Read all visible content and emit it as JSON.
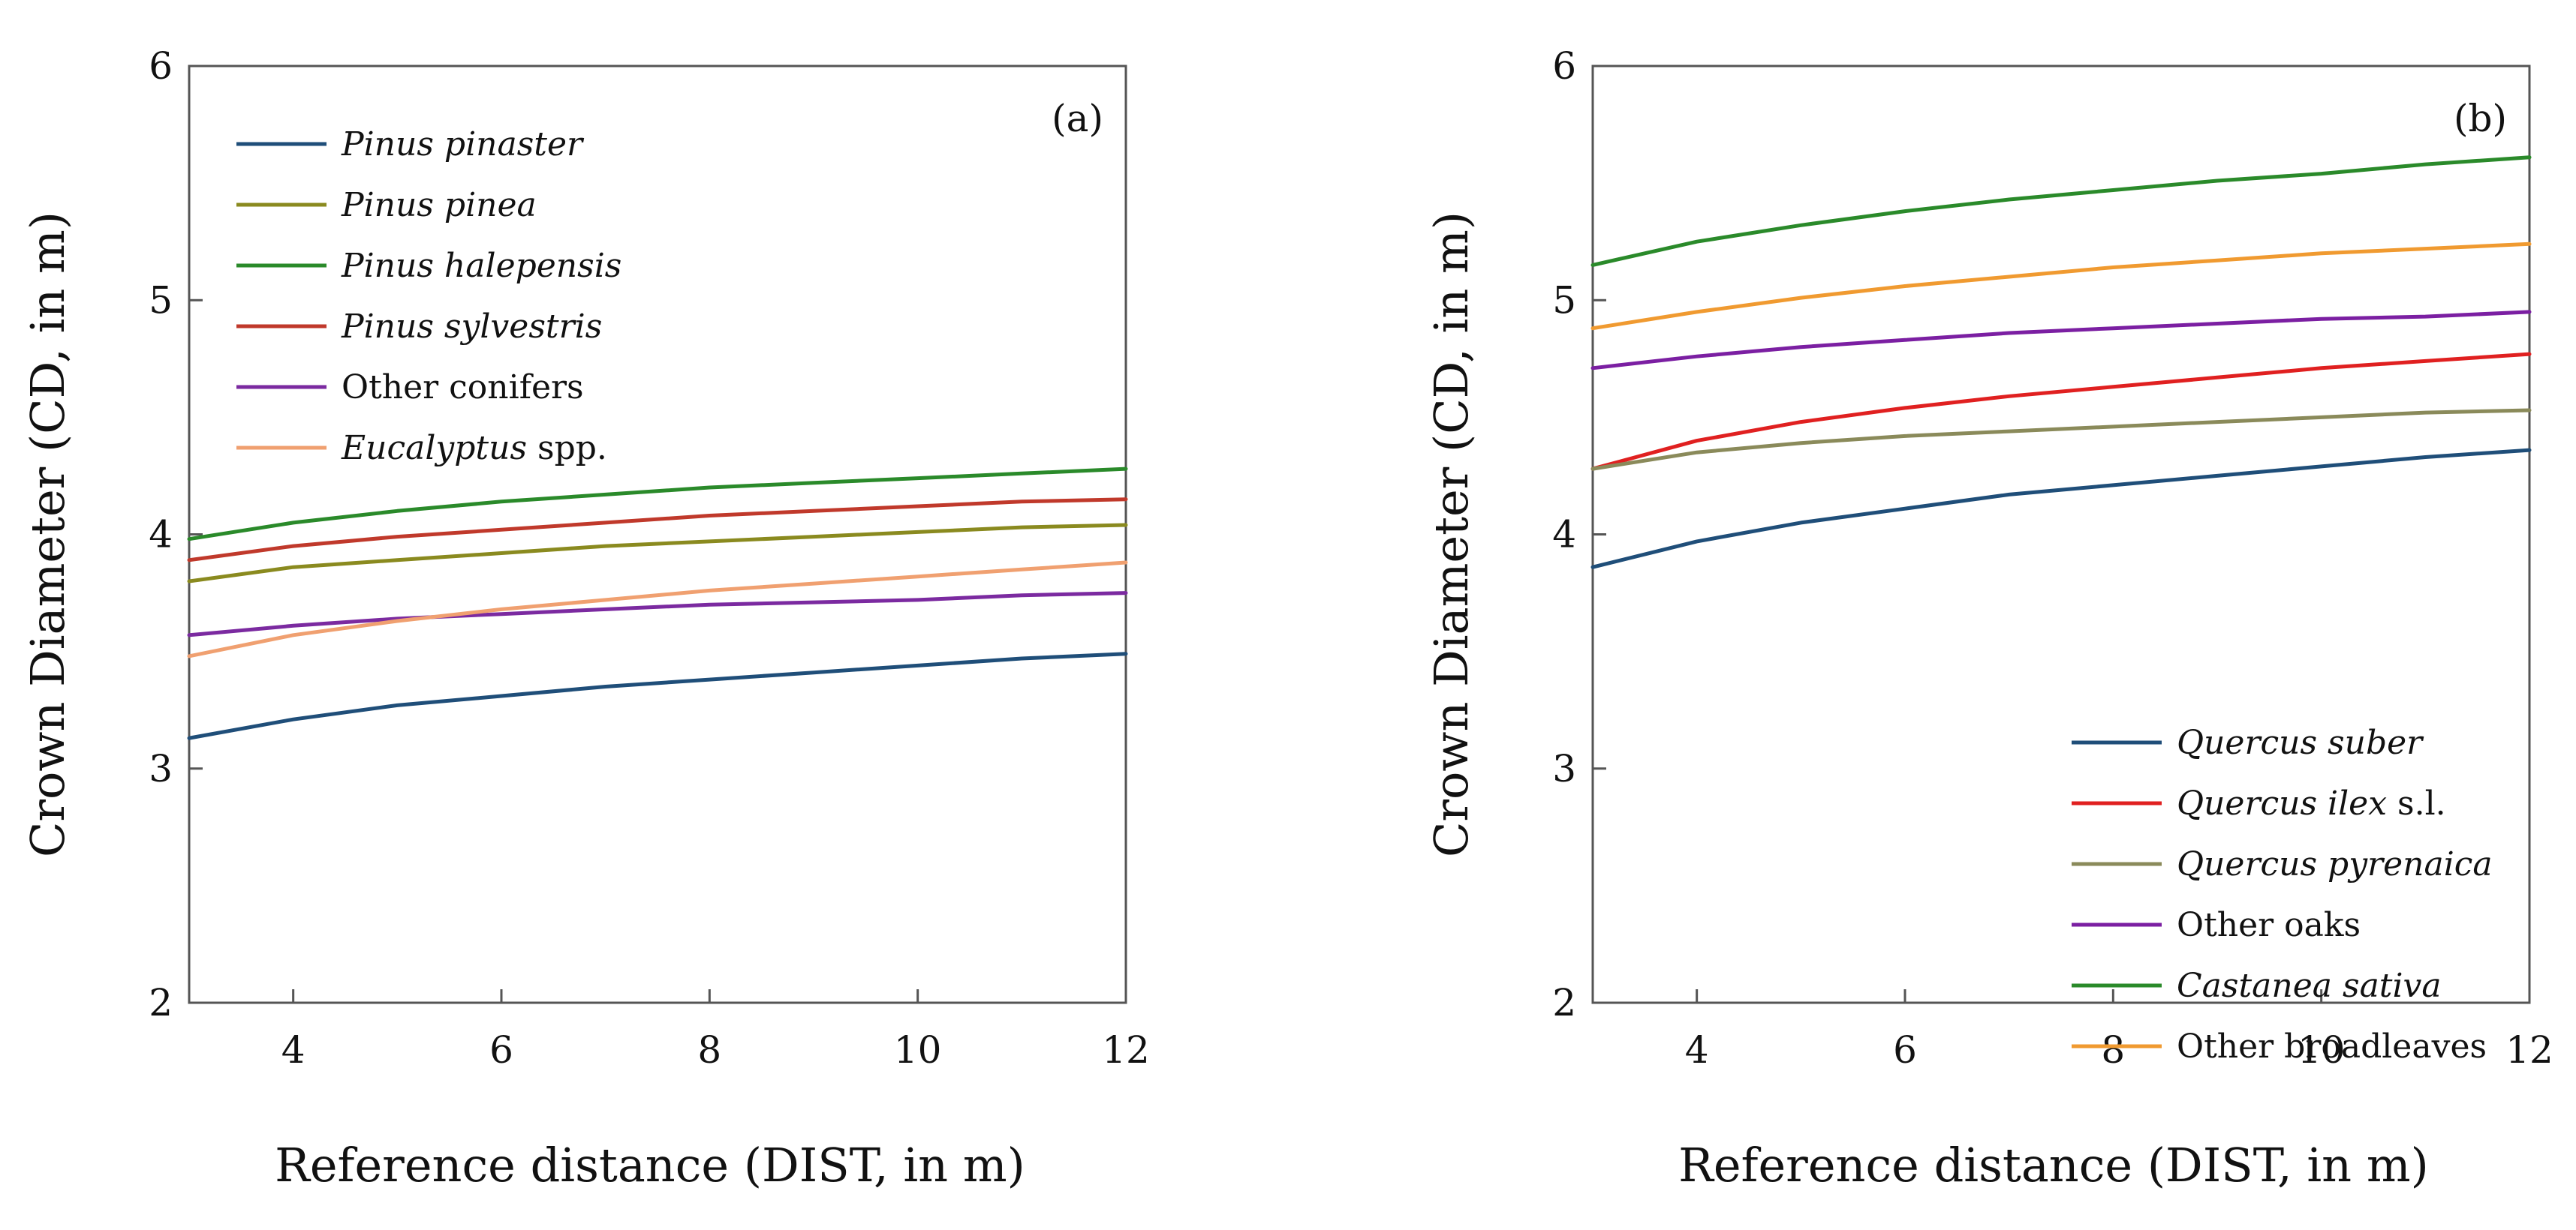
{
  "chart_data": [
    {
      "type": "line",
      "panel_label": "(a)",
      "xlabel": "Reference distance (DIST, in m)",
      "ylabel": "Crown Diameter (CD, in m)",
      "xlim": [
        3,
        12
      ],
      "ylim": [
        2,
        6
      ],
      "x_ticks": [
        4,
        6,
        8,
        10,
        12
      ],
      "y_ticks": [
        2,
        3,
        4,
        5,
        6
      ],
      "grid": false,
      "legend_position": "top-left",
      "x": [
        3,
        4,
        5,
        6,
        7,
        8,
        9,
        10,
        11,
        12
      ],
      "series": [
        {
          "name_italic": "Pinus pinaster",
          "name_rest": "",
          "color": "#1f4e79",
          "values": [
            3.13,
            3.21,
            3.27,
            3.31,
            3.35,
            3.38,
            3.41,
            3.44,
            3.47,
            3.49
          ]
        },
        {
          "name_italic": "Pinus pinea",
          "name_rest": "",
          "color": "#8a8a1f",
          "values": [
            3.8,
            3.86,
            3.89,
            3.92,
            3.95,
            3.97,
            3.99,
            4.01,
            4.03,
            4.04
          ]
        },
        {
          "name_italic": "Pinus halepensis",
          "name_rest": "",
          "color": "#2a8a2a",
          "values": [
            3.98,
            4.05,
            4.1,
            4.14,
            4.17,
            4.2,
            4.22,
            4.24,
            4.26,
            4.28
          ]
        },
        {
          "name_italic": "Pinus sylvestris",
          "name_rest": "",
          "color": "#c0392b",
          "values": [
            3.89,
            3.95,
            3.99,
            4.02,
            4.05,
            4.08,
            4.1,
            4.12,
            4.14,
            4.15
          ]
        },
        {
          "name_italic": "",
          "name_rest": "Other conifers",
          "color": "#7b2aa0",
          "values": [
            3.57,
            3.61,
            3.64,
            3.66,
            3.68,
            3.7,
            3.71,
            3.72,
            3.74,
            3.75
          ]
        },
        {
          "name_italic": "Eucalyptus",
          "name_rest": " spp.",
          "color": "#f0a070",
          "values": [
            3.48,
            3.57,
            3.63,
            3.68,
            3.72,
            3.76,
            3.79,
            3.82,
            3.85,
            3.88
          ]
        }
      ]
    },
    {
      "type": "line",
      "panel_label": "(b)",
      "xlabel": "Reference distance (DIST, in m)",
      "ylabel": "Crown Diameter (CD, in m)",
      "xlim": [
        3,
        12
      ],
      "ylim": [
        2,
        6
      ],
      "x_ticks": [
        4,
        6,
        8,
        10,
        12
      ],
      "y_ticks": [
        2,
        3,
        4,
        5,
        6
      ],
      "grid": false,
      "legend_position": "bottom-right",
      "x": [
        3,
        4,
        5,
        6,
        7,
        8,
        9,
        10,
        11,
        12
      ],
      "series": [
        {
          "name_italic": "Quercus suber",
          "name_rest": "",
          "color": "#1f4e79",
          "values": [
            3.86,
            3.97,
            4.05,
            4.11,
            4.17,
            4.21,
            4.25,
            4.29,
            4.33,
            4.36
          ]
        },
        {
          "name_italic": "Quercus ilex",
          "name_rest": " s.l.",
          "color": "#e02020",
          "values": [
            4.28,
            4.4,
            4.48,
            4.54,
            4.59,
            4.63,
            4.67,
            4.71,
            4.74,
            4.77
          ]
        },
        {
          "name_italic": "Quercus pyrenaica",
          "name_rest": "",
          "color": "#8a8a5a",
          "values": [
            4.28,
            4.35,
            4.39,
            4.42,
            4.44,
            4.46,
            4.48,
            4.5,
            4.52,
            4.53
          ]
        },
        {
          "name_italic": "",
          "name_rest": "Other oaks",
          "color": "#7b1fa2",
          "values": [
            4.71,
            4.76,
            4.8,
            4.83,
            4.86,
            4.88,
            4.9,
            4.92,
            4.93,
            4.95
          ]
        },
        {
          "name_italic": "Castanea sativa",
          "name_rest": "",
          "color": "#2a8a2a",
          "values": [
            5.15,
            5.25,
            5.32,
            5.38,
            5.43,
            5.47,
            5.51,
            5.54,
            5.58,
            5.61
          ]
        },
        {
          "name_italic": "",
          "name_rest": "Other broadleaves",
          "color": "#f09a30",
          "values": [
            4.88,
            4.95,
            5.01,
            5.06,
            5.1,
            5.14,
            5.17,
            5.2,
            5.22,
            5.24
          ]
        }
      ]
    }
  ]
}
